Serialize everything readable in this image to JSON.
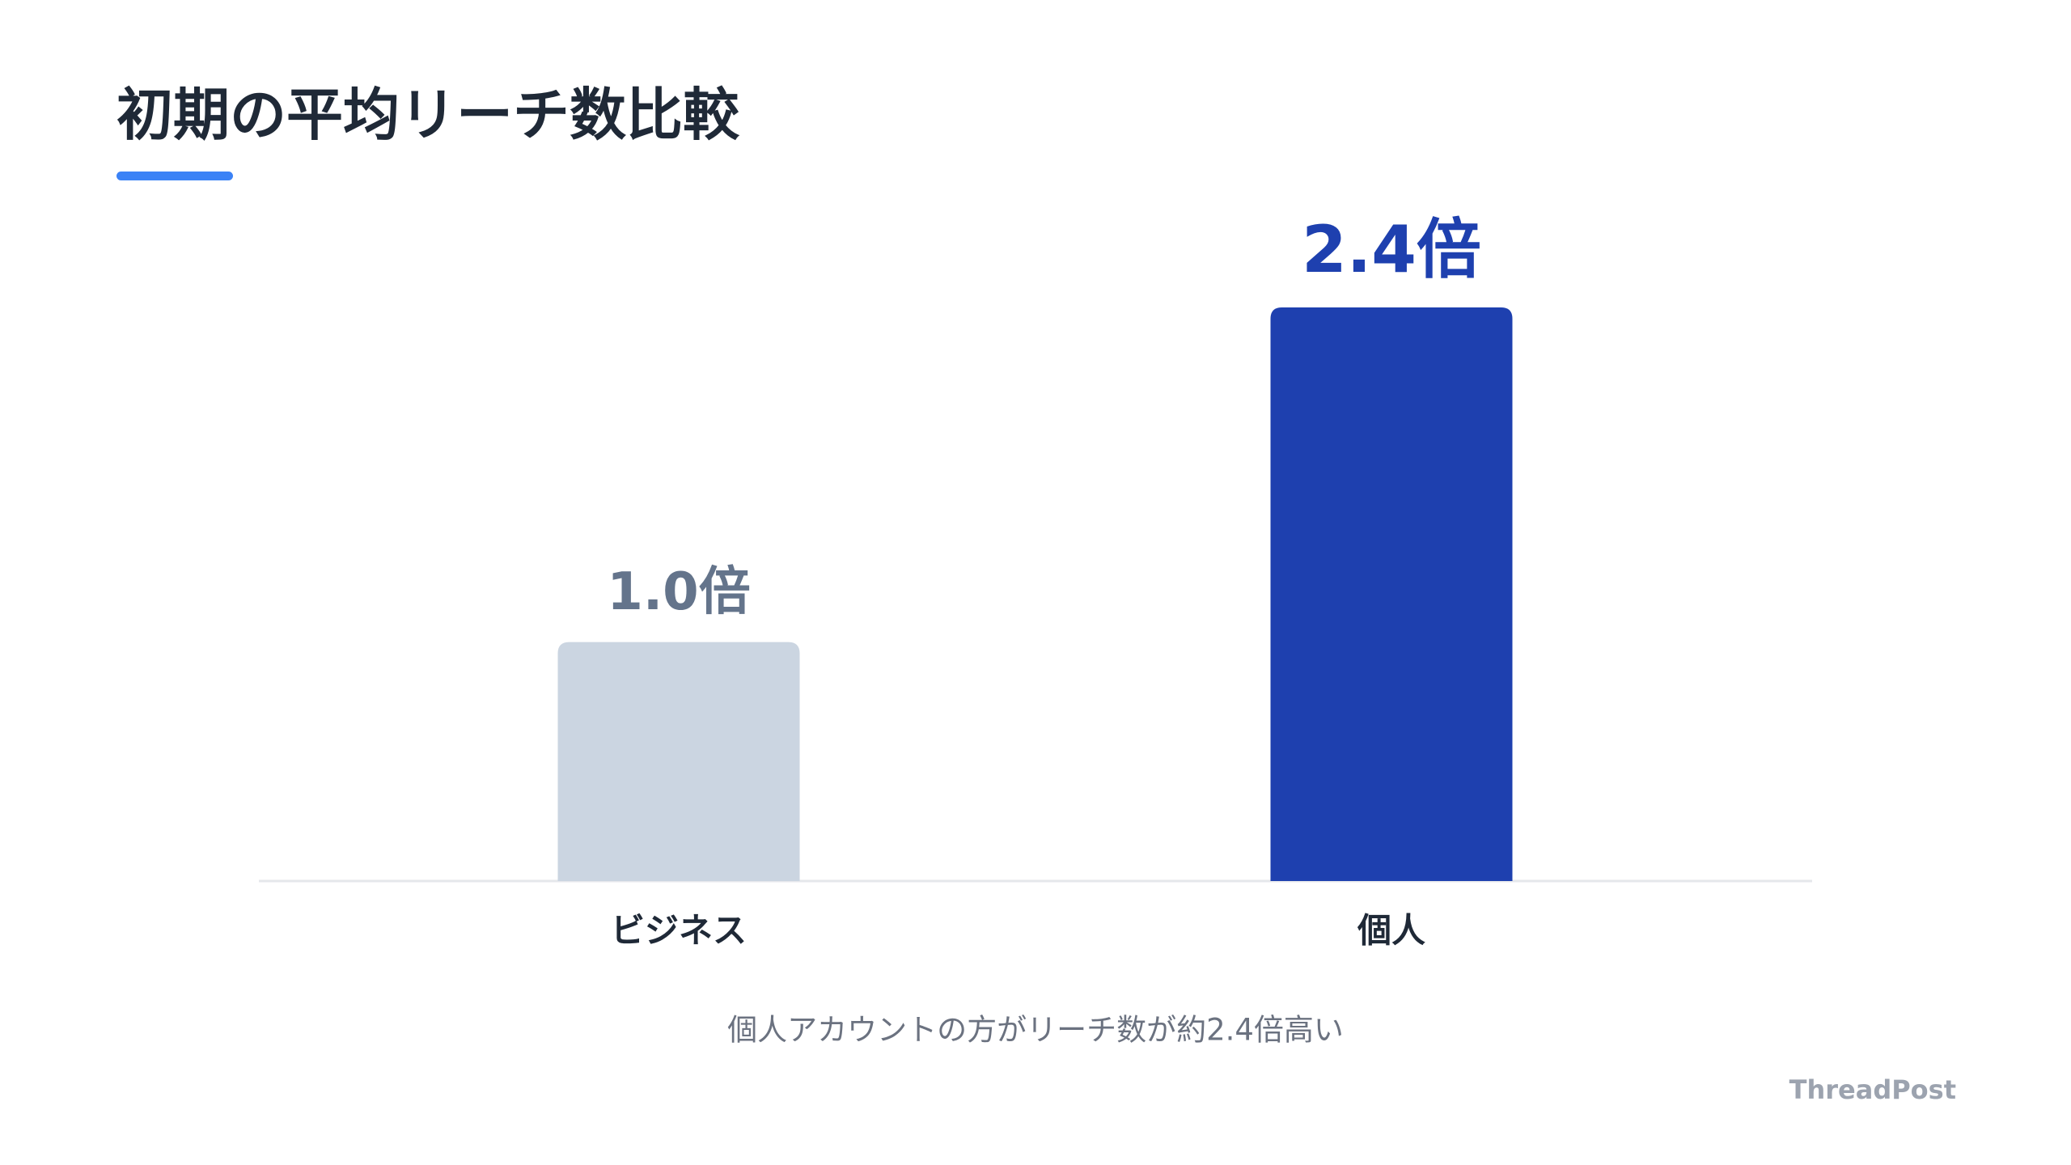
{
  "chart_data": {
    "type": "bar",
    "title": "初期の平均リーチ数比較",
    "categories": [
      "ビジネス",
      "個人"
    ],
    "values": [
      1.0,
      2.4
    ],
    "value_labels": [
      "1.0倍",
      "2.4倍"
    ],
    "colors": [
      "#cbd5e1",
      "#1e40af"
    ],
    "caption": "個人アカウントの方がリーチ数が約2.4倍高い"
  },
  "watermark": "ThreadPost"
}
